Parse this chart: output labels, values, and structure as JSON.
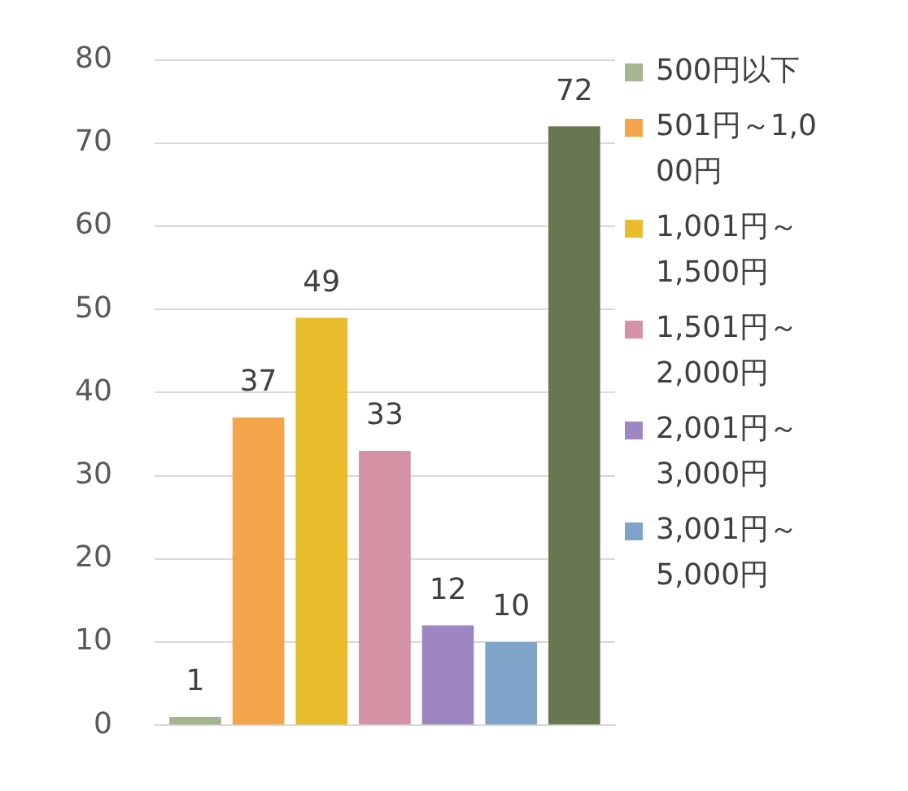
{
  "chart_data": {
    "type": "bar",
    "categories": [
      null
    ],
    "ylim": [
      0,
      80
    ],
    "yticks": [
      0,
      10,
      20,
      30,
      40,
      50,
      60,
      70,
      80
    ],
    "grid": "y",
    "legend": "right",
    "data_labels": true,
    "series": [
      {
        "name": "500円以下",
        "color": "#a4b58f",
        "values": [
          1
        ]
      },
      {
        "name": "501円～1,000円",
        "color": "#f4a54a",
        "values": [
          37
        ]
      },
      {
        "name": "1,001円～1,500円",
        "color": "#e8bc2c",
        "values": [
          49
        ]
      },
      {
        "name": "1,501円～2,000円",
        "color": "#d592a5",
        "values": [
          33
        ]
      },
      {
        "name": "2,001円～3,000円",
        "color": "#9e86c2",
        "values": [
          12
        ]
      },
      {
        "name": "3,001円～5,000円",
        "color": "#7fa3c9",
        "values": [
          10
        ]
      },
      {
        "color": "#677750",
        "values": [
          72
        ]
      }
    ]
  }
}
